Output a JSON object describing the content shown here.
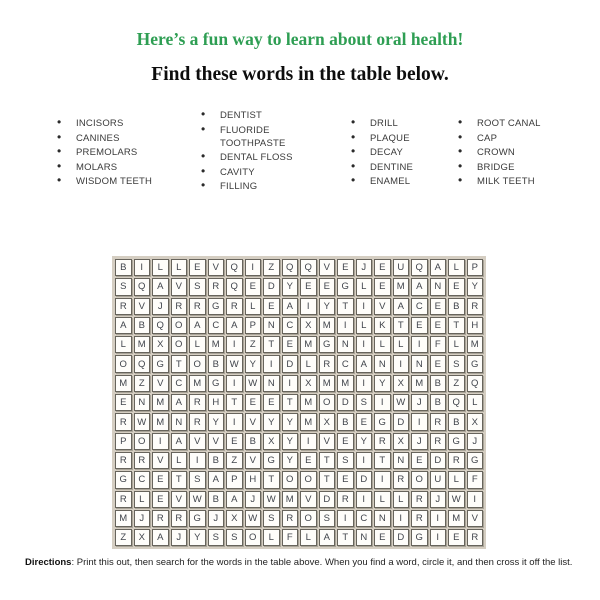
{
  "header": {
    "title": "Here’s a fun way to learn about oral health!",
    "subtitle": "Find these words in the table below."
  },
  "word_list": {
    "columns": [
      {
        "items": [
          "INCISORS",
          "CANINES",
          "PREMOLARS",
          "MOLARS",
          "WISDOM TEETH"
        ]
      },
      {
        "items": [
          "DENTIST",
          "FLUORIDE TOOTHPASTE",
          "DENTAL FLOSS",
          "CAVITY",
          "FILLING"
        ]
      },
      {
        "items": [
          "DRILL",
          "PLAQUE",
          "DECAY",
          "DENTINE",
          "ENAMEL"
        ]
      },
      {
        "items": [
          "ROOT CANAL",
          "CAP",
          "CROWN",
          "BRIDGE",
          "MILK TEETH"
        ]
      }
    ]
  },
  "grid": {
    "columns": 20,
    "rows": [
      "BILLEVQIZQQVEJEUQALP",
      "SQAVSRQEDYEEGLEMANEY",
      "RVJRRGRLEAIYTIVACEBR",
      "ABQOACAPNCXMILKTEETH",
      "LMXOLMIZTEMGNILLIFLM",
      "OQGTOBWYIDLRCANINESG",
      "MZVCMGIWNIXMMIYXMBZQ",
      "ENMARHTEETMODSIWJBQL",
      "RWMNRYIVYYMXBEGDIRBX",
      "POIAVVEBXYIVEYRXJRGJ",
      "RRVLIBZVGYETSITNEDRG",
      "GCETSAPHTOOTEDIROULF",
      "RLEVWBAJWMVDRILLRJWI",
      "MJRRGJXWSROSICNIRIMV",
      "ZXAJYSSOLFLATNEDGIER"
    ]
  },
  "directions": {
    "label": "Directions",
    "text": ": Print this out, then search for the words in the table above. When you find a word, circle it, and then cross it off the list."
  },
  "colors": {
    "title_green": "#2e9e53",
    "grid_background": "#d5cec2",
    "cell_border": "#67645c",
    "letter_color": "#41454c"
  }
}
